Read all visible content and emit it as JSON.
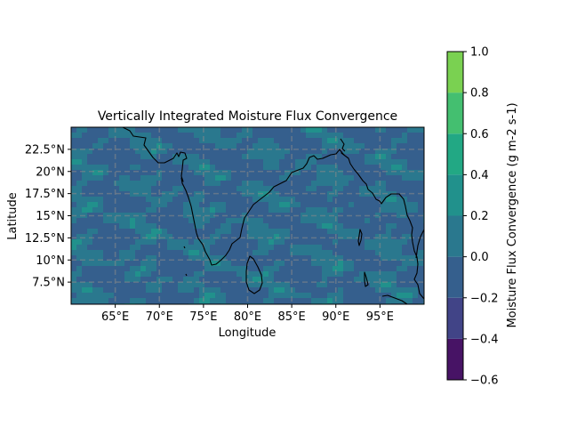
{
  "chart_data": {
    "type": "heatmap",
    "title": "Vertically Integrated Moisture Flux Convergence",
    "xlabel": "Longitude",
    "ylabel": "Latitude",
    "x_ticks": [
      "65°E",
      "70°E",
      "75°E",
      "80°E",
      "85°E",
      "90°E",
      "95°E"
    ],
    "y_ticks": [
      "22.5°N",
      "20°N",
      "17.5°N",
      "15°N",
      "12.5°N",
      "10°N",
      "7.5°N"
    ],
    "x_tick_values": [
      65,
      70,
      75,
      80,
      85,
      90,
      95
    ],
    "y_tick_values": [
      22.5,
      20,
      17.5,
      15,
      12.5,
      10,
      7.5
    ],
    "xlim": [
      60,
      100
    ],
    "ylim": [
      5,
      25
    ],
    "grid": true,
    "colorbar": {
      "label": "Moisture Flux Convergence (g m-2 s-1)",
      "levels": [
        -0.6,
        -0.4,
        -0.2,
        0.0,
        0.2,
        0.4,
        0.6,
        0.8,
        1.0
      ],
      "tick_labels": [
        "−0.6",
        "−0.4",
        "−0.2",
        "0.0",
        "0.2",
        "0.4",
        "0.6",
        "0.8",
        "1.0"
      ],
      "colors": [
        "#471365",
        "#414487",
        "#355f8d",
        "#2a788e",
        "#21918c",
        "#22a884",
        "#44bf70",
        "#7ad151",
        "#d8e219"
      ]
    },
    "dominant_band_colors": [
      "#355f8d",
      "#2a788e"
    ]
  }
}
